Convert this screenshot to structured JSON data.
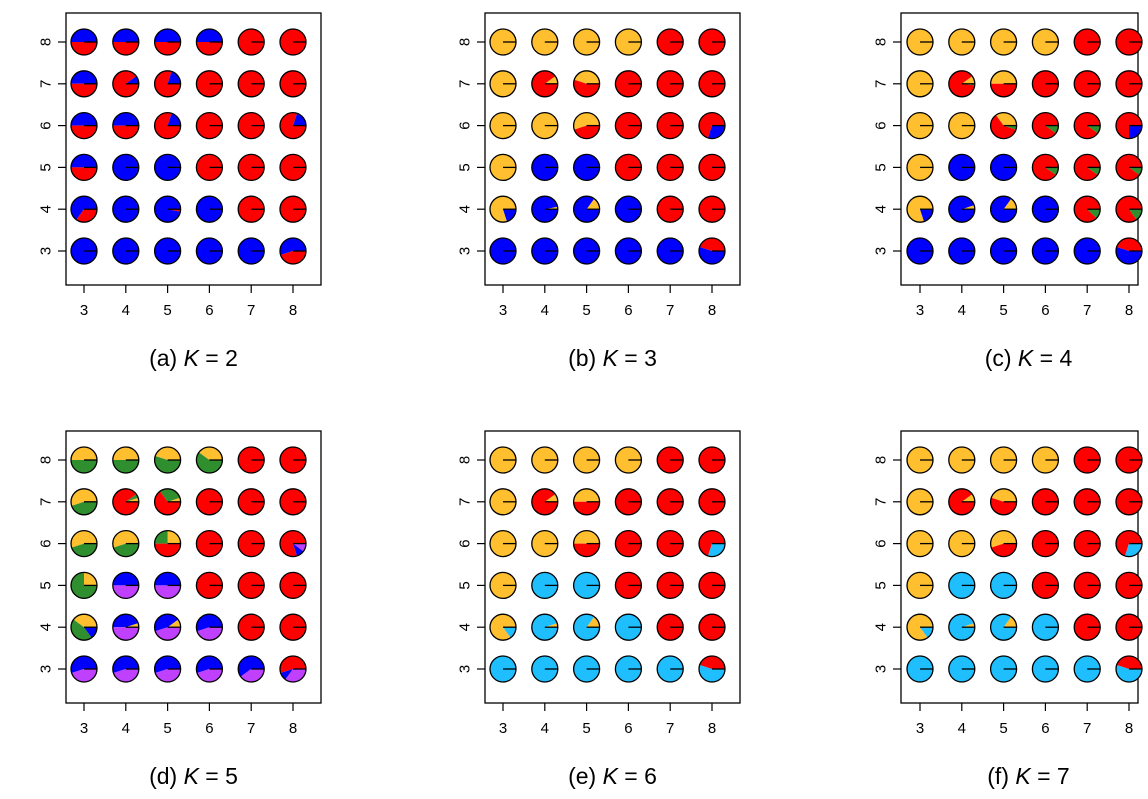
{
  "colors": {
    "blue": "#0000ff",
    "red": "#ff0000",
    "orange": "#ffbf2f",
    "green": "#2f8f2f",
    "purple": "#c040ff",
    "cyan": "#1fbfff"
  },
  "chart_data": [
    {
      "type": "pie-grid",
      "caption": {
        "prefix": "(a) ",
        "k": "K",
        "suffix": " = 2"
      },
      "x_ticks": [
        "3",
        "4",
        "5",
        "6",
        "7",
        "8"
      ],
      "y_ticks": [
        "3",
        "4",
        "5",
        "6",
        "7",
        "8"
      ],
      "xlim": [
        2.5,
        8.5
      ],
      "ylim": [
        2.5,
        8.5
      ],
      "grid": false,
      "components": [
        "blue",
        "red"
      ],
      "cells": [
        [
          "0.5 0.5",
          "0.5 0.5",
          "0.5 0.5",
          "0.5 0.5",
          "0 1",
          "0 1"
        ],
        [
          "0.5 0.5",
          "0.1 0.9",
          "0.2 0.8",
          "0 1",
          "0 1",
          "0 1"
        ],
        [
          "0.5 0.5",
          "0.5 0.5",
          "0.2 0.8",
          "0 1",
          "0 1",
          "0.2 0.8"
        ],
        [
          "0.5 0.5",
          "1 0",
          "1 0",
          "0 1",
          "0 1",
          "0 1"
        ],
        [
          "0.65 0.35",
          "1 0",
          "0.97 0.03",
          "1 0",
          "0 1",
          "0 1"
        ],
        [
          "1 0",
          "1 0",
          "1 0",
          "1 0",
          "1 0",
          "0.55 0.45"
        ]
      ]
    },
    {
      "type": "pie-grid",
      "caption": {
        "prefix": "(b) ",
        "k": "K",
        "suffix": " = 3"
      },
      "x_ticks": [
        "3",
        "4",
        "5",
        "6",
        "7",
        "8"
      ],
      "y_ticks": [
        "3",
        "4",
        "5",
        "6",
        "7",
        "8"
      ],
      "xlim": [
        2.5,
        8.5
      ],
      "ylim": [
        2.5,
        8.5
      ],
      "grid": false,
      "components": [
        "orange",
        "red",
        "blue"
      ],
      "cells": [
        [
          "1 0 0",
          "1 0 0",
          "1 0 0",
          "1 0 0",
          "0 1 0",
          "0 1 0"
        ],
        [
          "1 0 0",
          "0.1 0.9 0",
          "0.45 0.55 0",
          "0 1 0",
          "0 1 0",
          "0 1 0"
        ],
        [
          "1 0 0",
          "1 0 0",
          "0.55 0.45 0",
          "0 1 0",
          "0 1 0",
          "0 0.7 0.3"
        ],
        [
          "1 0 0",
          "0 0 1",
          "0 0 1",
          "0 1 0",
          "0 1 0",
          "0 1 0"
        ],
        [
          "0.8 0 0.2",
          "0.03 0 0.97",
          "0.15 0 0.85",
          "0 0 1",
          "0 1 0",
          "0 1 0"
        ],
        [
          "0 0 1",
          "0 0 1",
          "0 0 1",
          "0 0 1",
          "0 0 1",
          "0 0.45 0.55"
        ]
      ]
    },
    {
      "type": "pie-grid",
      "caption": {
        "prefix": "(c) ",
        "k": "K",
        "suffix": " = 4"
      },
      "x_ticks": [
        "3",
        "4",
        "5",
        "6",
        "7",
        "8"
      ],
      "y_ticks": [
        "3",
        "4",
        "5",
        "6",
        "7",
        "8"
      ],
      "xlim": [
        2.5,
        8.5
      ],
      "ylim": [
        2.5,
        8.5
      ],
      "grid": false,
      "components": [
        "orange",
        "red",
        "blue",
        "green"
      ],
      "cells": [
        [
          "1 0 0 0",
          "1 0 0 0",
          "1 0 0 0",
          "1 0 0 0",
          "0 1 0 0",
          "0 1 0 0"
        ],
        [
          "1 0 0 0",
          "0.1 0.88 0 0.02",
          "0.5 0.5 0 0",
          "0 1 0 0",
          "0 1 0 0",
          "0 1 0 0"
        ],
        [
          "1 0 0 0",
          "1 0 0 0",
          "0.35 0.6 0 0.05",
          "0 0.9 0 0.1",
          "0 0.9 0 0.1",
          "0 0.75 0.25 0"
        ],
        [
          "1 0 0 0",
          "0 0 1 0",
          "0 0 1 0",
          "0 0.9 0 0.1",
          "0 0.9 0 0.1",
          "0 0.9 0 0.1"
        ],
        [
          "0.8 0 0.2 0",
          "0.05 0 0.95 0",
          "0.15 0 0.85 0",
          "0 0 1 0",
          "0 0.88 0 0.12",
          "0 0.85 0 0.15"
        ],
        [
          "0 0 1 0",
          "0 0 1 0",
          "0 0 1 0",
          "0 0 1 0",
          "0 0 1 0",
          "0 0.45 0.55 0"
        ]
      ]
    },
    {
      "type": "pie-grid",
      "caption": {
        "prefix": "(d) ",
        "k": "K",
        "suffix": " = 5"
      },
      "x_ticks": [
        "3",
        "4",
        "5",
        "6",
        "7",
        "8"
      ],
      "y_ticks": [
        "3",
        "4",
        "5",
        "6",
        "7",
        "8"
      ],
      "xlim": [
        2.5,
        8.5
      ],
      "ylim": [
        2.5,
        8.5
      ],
      "grid": false,
      "components": [
        "orange",
        "green",
        "red",
        "blue",
        "purple"
      ],
      "cells": [
        [
          "0.5 0.5 0 0 0",
          "0.5 0.5 0 0 0",
          "0.45 0.55 0 0 0",
          "0.4 0.6 0 0 0",
          "0 0 1 0 0",
          "0 0 1 0 0"
        ],
        [
          "0.55 0.45 0 0 0",
          "0.05 0.05 0.9 0 0",
          "0.05 0.3 0.65 0 0",
          "0 0 1 0 0",
          "0 0 1 0 0",
          "0 0 1 0 0"
        ],
        [
          "0.55 0.45 0 0 0",
          "0.55 0.45 0 0 0",
          "0.25 0.25 0.5 0 0",
          "0 0 1 0 0",
          "0 0 1 0 0",
          "0 0 0.8 0.1 0.1"
        ],
        [
          "0.25 0.75 0 0 0",
          "0 0 0 0.5 0.5",
          "0 0 0 0.5 0.5",
          "0 0 1 0 0",
          "0 0 1 0 0",
          "0 0 1 0 0"
        ],
        [
          "0.4 0.45 0 0.15 0",
          "0.05 0 0 0.45 0.5",
          "0.1 0 0 0.45 0.45",
          "0 0 0 0.55 0.45",
          "0 0 1 0 0",
          "0 0 1 0 0"
        ],
        [
          "0 0 0 0.55 0.45",
          "0 0 0 0.55 0.45",
          "0 0 0 0.55 0.45",
          "0 0 0 0.55 0.45",
          "0 0 0 0.6 0.4",
          "0 0 0.55 0.1 0.35"
        ]
      ]
    },
    {
      "type": "pie-grid",
      "caption": {
        "prefix": "(e) ",
        "k": "K",
        "suffix": " = 6"
      },
      "x_ticks": [
        "3",
        "4",
        "5",
        "6",
        "7",
        "8"
      ],
      "y_ticks": [
        "3",
        "4",
        "5",
        "6",
        "7",
        "8"
      ],
      "xlim": [
        2.5,
        8.5
      ],
      "ylim": [
        2.5,
        8.5
      ],
      "grid": false,
      "components": [
        "orange",
        "red",
        "cyan"
      ],
      "cells": [
        [
          "1 0 0",
          "1 0 0",
          "1 0 0",
          "1 0 0",
          "0 1 0",
          "0 1 0"
        ],
        [
          "1 0 0",
          "0.1 0.9 0",
          "0.5 0.5 0",
          "0 1 0",
          "0 1 0",
          "0 1 0"
        ],
        [
          "1 0 0",
          "1 0 0",
          "0.5 0.5 0",
          "0 1 0",
          "0 1 0",
          "0 0.7 0.3"
        ],
        [
          "1 0 0",
          "0 0 1",
          "0 0 1",
          "0 1 0",
          "0 1 0",
          "0 1 0"
        ],
        [
          "0.85 0 0.15",
          "0.05 0 0.95",
          "0.15 0 0.85",
          "0 0 1",
          "0 1 0",
          "0 1 0"
        ],
        [
          "0 0 1",
          "0 0 1",
          "0 0 1",
          "0 0 1",
          "0 0 1",
          "0 0.45 0.55"
        ]
      ]
    },
    {
      "type": "pie-grid",
      "caption": {
        "prefix": "(f) ",
        "k": "K",
        "suffix": " = 7"
      },
      "x_ticks": [
        "3",
        "4",
        "5",
        "6",
        "7",
        "8"
      ],
      "y_ticks": [
        "3",
        "4",
        "5",
        "6",
        "7",
        "8"
      ],
      "xlim": [
        2.5,
        8.5
      ],
      "ylim": [
        2.5,
        8.5
      ],
      "grid": false,
      "components": [
        "orange",
        "red",
        "cyan"
      ],
      "cells": [
        [
          "1 0 0",
          "1 0 0",
          "1 0 0",
          "1 0 0",
          "0 1 0",
          "0 1 0"
        ],
        [
          "1 0 0",
          "0.1 0.9 0",
          "0.45 0.55 0",
          "0 1 0",
          "0 1 0",
          "0 1 0"
        ],
        [
          "1 0 0",
          "1 0 0",
          "0.55 0.45 0",
          "0 1 0",
          "0 1 0",
          "0 0.7 0.3"
        ],
        [
          "1 0 0",
          "0 0 1",
          "0 0 1",
          "0 1 0",
          "0 1 0",
          "0 1 0"
        ],
        [
          "0.85 0 0.15",
          "0.05 0 0.95",
          "0.15 0 0.85",
          "0 0 1",
          "0 1 0",
          "0 1 0"
        ],
        [
          "0 0 1",
          "0 0 1",
          "0 0 1",
          "0 0 1",
          "0 0 1",
          "0 0.45 0.55"
        ]
      ]
    }
  ]
}
